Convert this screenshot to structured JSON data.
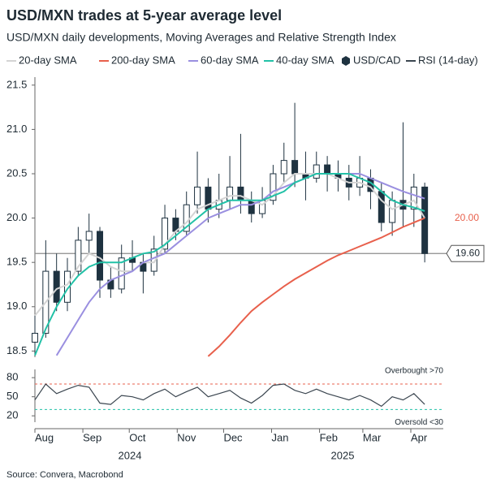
{
  "title": "USD/MXN trades at 5-year average level",
  "subtitle": "USD/MXN daily developments, Moving Averages and Relative Strength Index",
  "source": "Source: Convera, Macrobond",
  "years": [
    "2024",
    "2025"
  ],
  "chart_data": [
    {
      "type": "candlestick",
      "x": [
        0,
        7,
        14,
        21,
        28,
        35,
        42,
        49,
        56,
        63,
        70,
        77,
        84,
        91,
        98,
        105,
        112,
        119,
        126,
        133,
        140,
        147,
        154,
        161,
        168,
        175,
        182,
        189,
        196,
        203,
        210,
        217,
        224,
        231,
        238,
        245,
        252
      ],
      "candles": {
        "name": "USD/CAD",
        "color": "#1e3240",
        "open": [
          18.6,
          18.7,
          19.4,
          19.05,
          19.4,
          19.75,
          19.85,
          19.3,
          19.2,
          19.55,
          19.5,
          19.4,
          19.65,
          20.0,
          19.85,
          20.15,
          20.35,
          20.1,
          20.2,
          20.35,
          20.2,
          20.05,
          20.2,
          20.5,
          20.65,
          20.5,
          20.45,
          20.6,
          20.5,
          20.45,
          20.35,
          20.45,
          20.3,
          19.95,
          20.2,
          20.1,
          20.35
        ],
        "high": [
          18.9,
          19.75,
          19.6,
          19.55,
          19.9,
          20.05,
          19.9,
          19.45,
          19.7,
          19.75,
          19.6,
          19.8,
          20.15,
          20.1,
          20.3,
          20.75,
          20.45,
          20.5,
          20.7,
          20.95,
          20.3,
          20.35,
          20.6,
          20.85,
          21.3,
          20.75,
          20.75,
          20.7,
          20.65,
          20.6,
          20.7,
          20.55,
          20.4,
          20.3,
          21.08,
          20.5,
          20.4
        ],
        "low": [
          18.45,
          18.65,
          18.95,
          18.95,
          19.35,
          19.6,
          19.1,
          19.1,
          19.15,
          19.4,
          19.15,
          19.35,
          19.6,
          19.75,
          19.8,
          20.05,
          19.95,
          20.0,
          20.1,
          20.05,
          19.95,
          20.0,
          20.15,
          20.4,
          20.35,
          20.2,
          20.4,
          20.3,
          20.3,
          20.2,
          20.25,
          20.1,
          19.85,
          19.8,
          19.9,
          19.9,
          19.5
        ],
        "close": [
          18.7,
          19.4,
          19.05,
          19.4,
          19.75,
          19.85,
          19.3,
          19.2,
          19.55,
          19.5,
          19.4,
          19.65,
          20.0,
          19.85,
          20.15,
          20.35,
          20.1,
          20.2,
          20.35,
          20.2,
          20.05,
          20.2,
          20.5,
          20.65,
          20.5,
          20.45,
          20.6,
          20.5,
          20.45,
          20.35,
          20.45,
          20.3,
          19.95,
          20.2,
          20.1,
          20.35,
          19.6
        ]
      },
      "series": [
        {
          "name": "20-day SMA",
          "color": "#d4d4d4",
          "values": [
            18.9,
            19.05,
            19.2,
            19.25,
            19.45,
            19.6,
            19.55,
            19.45,
            19.4,
            19.4,
            19.5,
            19.5,
            19.7,
            19.85,
            19.95,
            20.1,
            20.15,
            20.2,
            20.25,
            20.25,
            20.2,
            20.15,
            20.25,
            20.4,
            20.5,
            20.5,
            20.5,
            20.5,
            20.45,
            20.4,
            20.4,
            20.35,
            20.2,
            20.1,
            20.15,
            20.2,
            20.0
          ]
        },
        {
          "name": "200-day SMA",
          "color": "#e8604c",
          "end_label": "20.00",
          "values": [
            null,
            null,
            null,
            null,
            null,
            null,
            null,
            null,
            null,
            null,
            null,
            null,
            null,
            null,
            null,
            null,
            18.44,
            18.55,
            18.68,
            18.82,
            18.95,
            19.05,
            19.14,
            19.23,
            19.31,
            19.38,
            19.45,
            19.52,
            19.58,
            19.63,
            19.68,
            19.73,
            19.78,
            19.84,
            19.9,
            19.95,
            20.0
          ]
        },
        {
          "name": "60-day SMA",
          "color": "#9a8fe0",
          "values": [
            null,
            null,
            18.45,
            18.65,
            18.85,
            19.05,
            19.2,
            19.3,
            19.35,
            19.4,
            19.5,
            19.55,
            19.6,
            19.7,
            19.8,
            19.9,
            20.0,
            20.05,
            20.1,
            20.15,
            20.15,
            20.2,
            20.3,
            20.35,
            20.4,
            20.45,
            20.5,
            20.5,
            20.5,
            20.5,
            20.5,
            20.45,
            20.4,
            20.35,
            20.3,
            20.26,
            20.22
          ]
        },
        {
          "name": "40-day SMA",
          "color": "#22c1a7",
          "values": [
            18.45,
            18.75,
            19.0,
            19.2,
            19.35,
            19.45,
            19.5,
            19.5,
            19.5,
            19.55,
            19.6,
            19.62,
            19.7,
            19.8,
            19.9,
            20.0,
            20.1,
            20.15,
            20.2,
            20.2,
            20.2,
            20.2,
            20.25,
            20.3,
            20.4,
            20.45,
            20.5,
            20.5,
            20.5,
            20.5,
            20.45,
            20.4,
            20.3,
            20.2,
            20.15,
            20.12,
            20.08
          ]
        }
      ],
      "reference_line": {
        "value": 19.6,
        "label": "19.60",
        "color": "#8c8c8c"
      },
      "xlim": [
        0,
        264
      ],
      "xticks": [
        {
          "value": 0,
          "label": "Aug"
        },
        {
          "value": 31,
          "label": "Sep"
        },
        {
          "value": 61,
          "label": "Oct"
        },
        {
          "value": 92,
          "label": "Nov"
        },
        {
          "value": 122,
          "label": "Dec"
        },
        {
          "value": 153,
          "label": "Jan"
        },
        {
          "value": 184,
          "label": "Feb"
        },
        {
          "value": 212,
          "label": "Mar"
        },
        {
          "value": 243,
          "label": "Apr"
        }
      ],
      "ylim": [
        18.43,
        21.59
      ],
      "yticks": [
        18.5,
        {
          "value": 19,
          "label": "19.0"
        },
        19.5,
        {
          "value": 20,
          "label": "20.0"
        },
        20.5,
        {
          "value": 21,
          "label": "21.0"
        },
        21.5
      ]
    },
    {
      "type": "line",
      "x": [
        0,
        7,
        14,
        21,
        28,
        35,
        42,
        49,
        56,
        63,
        70,
        77,
        84,
        91,
        98,
        105,
        112,
        119,
        126,
        133,
        140,
        147,
        154,
        161,
        168,
        175,
        182,
        189,
        196,
        203,
        210,
        217,
        224,
        231,
        238,
        245,
        252
      ],
      "series": [
        {
          "name": "RSI (14-day)",
          "color": "#3b4650",
          "values": [
            45,
            70,
            55,
            62,
            68,
            65,
            40,
            38,
            52,
            50,
            45,
            55,
            62,
            50,
            58,
            65,
            50,
            55,
            60,
            48,
            40,
            52,
            68,
            70,
            60,
            55,
            62,
            55,
            50,
            45,
            52,
            45,
            35,
            50,
            45,
            55,
            38
          ]
        }
      ],
      "reference_lines": [
        {
          "value": 70,
          "label": "Overbought >70",
          "color": "#e8604c"
        },
        {
          "value": 30,
          "label": "Oversold <30",
          "color": "#22c1a7"
        }
      ],
      "ylim": [
        10,
        93
      ],
      "yticks": [
        20,
        50,
        80
      ]
    }
  ]
}
